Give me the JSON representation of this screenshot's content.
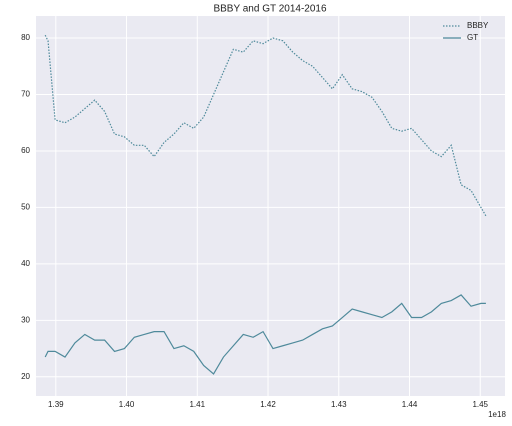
{
  "chart_data": {
    "type": "line",
    "title": "BBBY and GT 2014-2016",
    "x": [
      1.3885e+18,
      1.3889e+18,
      1.3899e+18,
      1.3913e+18,
      1.3927e+18,
      1.3941e+18,
      1.3955e+18,
      1.3969e+18,
      1.3983e+18,
      1.3997e+18,
      1.4011e+18,
      1.4025e+18,
      1.4039e+18,
      1.4053e+18,
      1.4067e+18,
      1.4081e+18,
      1.4095e+18,
      1.4109e+18,
      1.4123e+18,
      1.4137e+18,
      1.4151e+18,
      1.4165e+18,
      1.4179e+18,
      1.4193e+18,
      1.4207e+18,
      1.4221e+18,
      1.4235e+18,
      1.4249e+18,
      1.4263e+18,
      1.4277e+18,
      1.4291e+18,
      1.4305e+18,
      1.4319e+18,
      1.4333e+18,
      1.4347e+18,
      1.4361e+18,
      1.4375e+18,
      1.4389e+18,
      1.4403e+18,
      1.4417e+18,
      1.4431e+18,
      1.4445e+18,
      1.4459e+18,
      1.4473e+18,
      1.4487e+18,
      1.4501e+18,
      1.4508e+18
    ],
    "series": [
      {
        "name": "BBBY",
        "color": "#4f8a9b",
        "linestyle": "dotted",
        "values": [
          80.5,
          79.5,
          65.5,
          65,
          66,
          67.5,
          69,
          67,
          63,
          62.5,
          61,
          61,
          59,
          61.5,
          63,
          65,
          64,
          66,
          70,
          74,
          78,
          77.5,
          79.5,
          79,
          80,
          79.5,
          77.5,
          76,
          75,
          73,
          71,
          73.5,
          71,
          70.5,
          69.5,
          67,
          64,
          63.5,
          64,
          62,
          60,
          59,
          61,
          54,
          53,
          50,
          48.5
        ]
      },
      {
        "name": "GT",
        "color": "#4f8a9b",
        "linestyle": "solid",
        "values": [
          23.5,
          24.5,
          24.5,
          23.5,
          26,
          27.5,
          26.5,
          26.5,
          24.5,
          25,
          27,
          27.5,
          28,
          28,
          25,
          25.5,
          24.5,
          22,
          20.5,
          23.5,
          25.5,
          27.5,
          27,
          28,
          25,
          25.5,
          26,
          26.5,
          27.5,
          28.5,
          29,
          30.5,
          32,
          31.5,
          31,
          30.5,
          31.5,
          33,
          30.5,
          30.5,
          31.5,
          33,
          33.5,
          34.5,
          32.5,
          33,
          33
        ]
      }
    ],
    "xlim": [
      1.3872e+18,
      1.4535e+18
    ],
    "xticks": [
      {
        "value": 1.39e+18,
        "label": "1.39"
      },
      {
        "value": 1.4e+18,
        "label": "1.40"
      },
      {
        "value": 1.41e+18,
        "label": "1.41"
      },
      {
        "value": 1.42e+18,
        "label": "1.42"
      },
      {
        "value": 1.43e+18,
        "label": "1.43"
      },
      {
        "value": 1.44e+18,
        "label": "1.44"
      },
      {
        "value": 1.45e+18,
        "label": "1.45"
      }
    ],
    "x_offset_text": "1e18",
    "ylim": [
      16.6,
      83.9
    ],
    "yticks": [
      20,
      30,
      40,
      50,
      60,
      70,
      80
    ],
    "grid": true,
    "legend": "upper right"
  }
}
